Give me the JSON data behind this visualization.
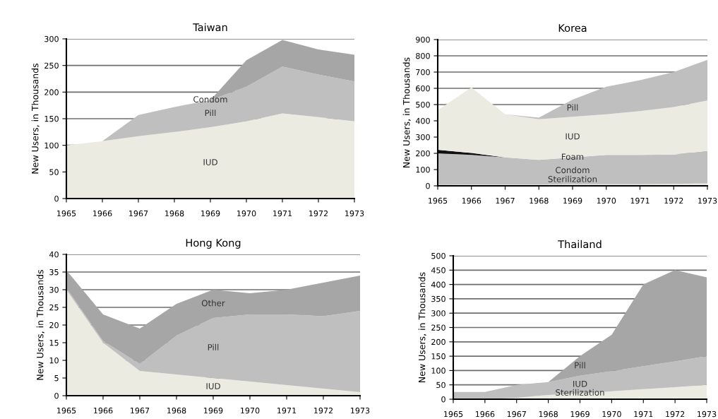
{
  "chart_data": [
    {
      "type": "area",
      "title": "Taiwan",
      "ylabel": "New Users, in Thousands",
      "stacked": true,
      "grid": "y",
      "legend": false,
      "x": [
        1965,
        1966,
        1967,
        1968,
        1969,
        1970,
        1971,
        1972,
        1973
      ],
      "xlim": [
        1965,
        1973
      ],
      "xticks": [
        1965,
        1966,
        1967,
        1968,
        1969,
        1970,
        1971,
        1972,
        1973
      ],
      "ylim": [
        0,
        300
      ],
      "yticks": [
        0,
        50,
        100,
        150,
        200,
        250,
        300
      ],
      "series": [
        {
          "name": "IUD",
          "color": "#ecebe1",
          "values": [
            100,
            108,
            117,
            125,
            134,
            145,
            160,
            153,
            145
          ]
        },
        {
          "name": "Pill",
          "color": "#bfbfbf",
          "values": [
            0,
            0,
            40,
            47,
            51,
            65,
            88,
            80,
            75
          ]
        },
        {
          "name": "Condom",
          "color": "#a6a6a6",
          "values": [
            0,
            0,
            0,
            0,
            0,
            50,
            50,
            47,
            50
          ]
        }
      ]
    },
    {
      "type": "area",
      "title": "Korea",
      "ylabel": "New Users, in Thousands",
      "stacked": true,
      "grid": "y",
      "legend": false,
      "x": [
        1965,
        1966,
        1967,
        1968,
        1969,
        1970,
        1971,
        1972,
        1973
      ],
      "xlim": [
        1965,
        1973
      ],
      "xticks": [
        1965,
        1966,
        1967,
        1968,
        1969,
        1970,
        1971,
        1972,
        1973
      ],
      "ylim": [
        0,
        900
      ],
      "yticks": [
        0,
        100,
        200,
        300,
        400,
        500,
        600,
        700,
        800,
        900
      ],
      "series": [
        {
          "name": "Sterilization",
          "color": "#ecebe1",
          "values": [
            5,
            8,
            8,
            8,
            10,
            10,
            10,
            12,
            15
          ]
        },
        {
          "name": "Condom",
          "color": "#bfbfbf",
          "values": [
            195,
            182,
            167,
            152,
            165,
            180,
            180,
            180,
            200
          ]
        },
        {
          "name": "Foam",
          "color": "#111111",
          "values": [
            22,
            12,
            0,
            0,
            0,
            0,
            0,
            0,
            0
          ]
        },
        {
          "name": "IUD",
          "color": "#ecebe1",
          "values": [
            243,
            403,
            265,
            250,
            250,
            250,
            270,
            293,
            310
          ]
        },
        {
          "name": "Pill",
          "color": "#bfbfbf",
          "values": [
            0,
            0,
            0,
            10,
            105,
            170,
            190,
            215,
            250
          ]
        }
      ]
    },
    {
      "type": "area",
      "title": "Hong Kong",
      "ylabel": "New Users, in Thousands",
      "stacked": true,
      "grid": "y",
      "legend": false,
      "x": [
        1965,
        1966,
        1967,
        1968,
        1969,
        1970,
        1971,
        1972,
        1973
      ],
      "xlim": [
        1965,
        1973
      ],
      "xticks": [
        1965,
        1966,
        1967,
        1968,
        1969,
        1970,
        1971,
        1972,
        1973
      ],
      "ylim": [
        0,
        40
      ],
      "yticks": [
        0,
        5,
        10,
        15,
        20,
        25,
        30,
        35,
        40
      ],
      "series": [
        {
          "name": "IUD",
          "color": "#ecebe1",
          "values": [
            30,
            15,
            7,
            6,
            5,
            4,
            3,
            2,
            1
          ]
        },
        {
          "name": "Pill",
          "color": "#bfbfbf",
          "values": [
            0.5,
            0.5,
            2,
            11,
            17,
            19,
            20,
            20.5,
            23
          ]
        },
        {
          "name": "Other",
          "color": "#a6a6a6",
          "values": [
            5,
            7.5,
            10,
            9,
            8,
            6,
            7,
            9.5,
            10
          ]
        }
      ]
    },
    {
      "type": "area",
      "title": "Thailand",
      "ylabel": "New Users, in Thousands",
      "stacked": true,
      "grid": "y",
      "legend": false,
      "x": [
        1965,
        1966,
        1967,
        1968,
        1969,
        1970,
        1971,
        1972,
        1973
      ],
      "xlim": [
        1965,
        1973
      ],
      "xticks": [
        1965,
        1966,
        1967,
        1968,
        1969,
        1970,
        1971,
        1972,
        1973
      ],
      "ylim": [
        0,
        500
      ],
      "yticks": [
        0,
        50,
        100,
        150,
        200,
        250,
        300,
        350,
        400,
        450,
        500
      ],
      "series": [
        {
          "name": "Sterilization",
          "color": "#ecebe1",
          "values": [
            0,
            0,
            5,
            15,
            20,
            28,
            35,
            42,
            50
          ]
        },
        {
          "name": "IUD",
          "color": "#bfbfbf",
          "values": [
            25,
            25,
            45,
            45,
            62,
            70,
            80,
            90,
            100
          ]
        },
        {
          "name": "Pill",
          "color": "#a6a6a6",
          "values": [
            0,
            0,
            0,
            0,
            68,
            127,
            285,
            318,
            275
          ]
        }
      ]
    }
  ]
}
